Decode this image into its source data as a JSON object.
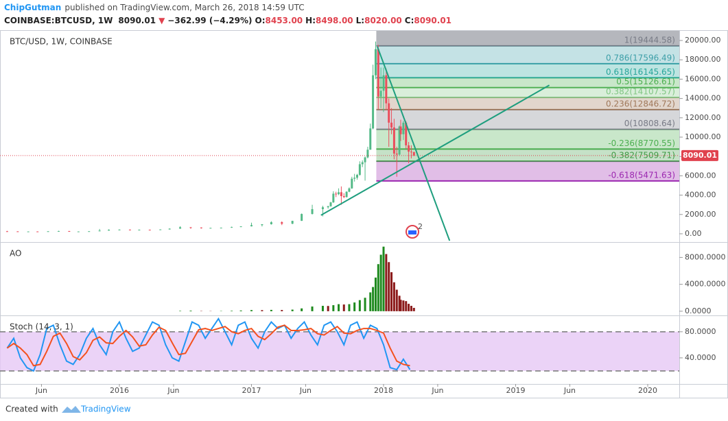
{
  "header": {
    "author": "ChipGutman",
    "published": "published on TradingView.com, March 26, 2018 14:59 UTC",
    "symbol": "COINBASE:BTCUSD, 1W",
    "price": "8090.01",
    "arrow": "▼",
    "change": "−362.99 (−4.29%)",
    "open_label": "O:",
    "open": "8453.00",
    "high_label": "H:",
    "high": "8498.00",
    "low_label": "L:",
    "low": "8020.00",
    "close_label": "C:",
    "close": "8090.01"
  },
  "events_badge": "2",
  "footer": {
    "created": "Created with",
    "brand": "TradingView"
  },
  "chart_data": [
    {
      "type": "candlestick",
      "title": "BTC/USD, 1W, COINBASE",
      "x": [
        2015.15,
        2015.23,
        2015.31,
        2015.38,
        2015.46,
        2015.54,
        2015.62,
        2015.69,
        2015.77,
        2015.85,
        2015.92,
        2016,
        2016.08,
        2016.15,
        2016.23,
        2016.31,
        2016.38,
        2016.46,
        2016.54,
        2016.62,
        2016.69,
        2016.77,
        2016.85,
        2016.92,
        2017,
        2017.08,
        2017.15,
        2017.23,
        2017.31,
        2017.38,
        2017.46,
        2017.54,
        2017.58,
        2017.6,
        2017.62,
        2017.64,
        2017.66,
        2017.68,
        2017.7,
        2017.72,
        2017.74,
        2017.76,
        2017.78,
        2017.8,
        2017.82,
        2017.84,
        2017.86,
        2017.88,
        2017.9,
        2017.92,
        2017.94,
        2017.96,
        2017.98,
        2018,
        2018.02,
        2018.04,
        2018.06,
        2018.08,
        2018.1,
        2018.12,
        2018.13,
        2018.15,
        2018.17,
        2018.19,
        2018.21,
        2018.23
      ],
      "open": [
        260,
        250,
        230,
        240,
        230,
        260,
        285,
        230,
        240,
        265,
        330,
        420,
        430,
        380,
        420,
        415,
        450,
        530,
        680,
        650,
        575,
        610,
        630,
        700,
        770,
        900,
        990,
        1200,
        1040,
        1340,
        2050,
        2550,
        2750,
        2850,
        3250,
        4150,
        4100,
        4300,
        3900,
        3800,
        4350,
        4700,
        5700,
        5800,
        6100,
        7200,
        7400,
        7900,
        8700,
        10900,
        16400,
        19100,
        14200,
        14800,
        16400,
        13500,
        11500,
        11000,
        8300,
        8200,
        11100,
        10300,
        11500,
        9150,
        8500,
        8453
      ],
      "high": [
        300,
        260,
        245,
        250,
        270,
        310,
        290,
        245,
        270,
        500,
        460,
        460,
        440,
        440,
        430,
        460,
        560,
        780,
        690,
        660,
        620,
        640,
        740,
        780,
        1150,
        1000,
        1300,
        1290,
        1350,
        2100,
        3000,
        2900,
        2900,
        3300,
        4400,
        4350,
        4700,
        4900,
        4200,
        4400,
        4800,
        5900,
        6200,
        6200,
        7500,
        7600,
        8000,
        9000,
        11400,
        17500,
        19890,
        19550,
        17200,
        17200,
        17100,
        14000,
        13000,
        11900,
        9000,
        11200,
        11800,
        11700,
        11650,
        9500,
        9150,
        8498
      ],
      "low": [
        240,
        220,
        215,
        220,
        225,
        255,
        200,
        220,
        235,
        260,
        320,
        380,
        360,
        370,
        400,
        410,
        440,
        520,
        520,
        540,
        570,
        600,
        620,
        690,
        760,
        760,
        950,
        900,
        1000,
        1330,
        2000,
        1800,
        2600,
        2800,
        3200,
        3800,
        4000,
        3000,
        3700,
        3750,
        4300,
        4650,
        5400,
        5600,
        6000,
        6900,
        5500,
        7800,
        8700,
        10800,
        16000,
        12900,
        13000,
        12600,
        12800,
        9000,
        10300,
        7700,
        5900,
        8100,
        9600,
        9700,
        8800,
        7300,
        7800,
        8020
      ],
      "close": [
        250,
        230,
        240,
        230,
        260,
        285,
        230,
        240,
        265,
        330,
        420,
        430,
        380,
        420,
        415,
        450,
        530,
        680,
        650,
        575,
        610,
        630,
        700,
        770,
        900,
        990,
        1200,
        1040,
        1340,
        2050,
        2550,
        2750,
        2850,
        3250,
        4150,
        4100,
        4300,
        3900,
        3800,
        4350,
        4700,
        5700,
        5800,
        6100,
        7200,
        7400,
        7900,
        8700,
        10900,
        16400,
        19100,
        14200,
        14800,
        16400,
        13500,
        11500,
        11000,
        8300,
        8200,
        11100,
        10300,
        11500,
        9150,
        8500,
        8453,
        8090.01
      ],
      "up_color": "#53b987",
      "down_color": "#eb4d5c",
      "xlim": [
        2015.096,
        2020.239
      ],
      "ylim": [
        -854,
        20996
      ],
      "yticks": [
        {
          "value": 0,
          "label": "0.00"
        },
        {
          "value": 2000,
          "label": "2000.00"
        },
        {
          "value": 4000,
          "label": "4000.00"
        },
        {
          "value": 6000,
          "label": "6000.00"
        },
        {
          "value": 8000,
          "label": "8000.00"
        },
        {
          "value": 10000,
          "label": "10000.00"
        },
        {
          "value": 12000,
          "label": "12000.00"
        },
        {
          "value": 14000,
          "label": "14000.00"
        },
        {
          "value": 16000,
          "label": "16000.00"
        },
        {
          "value": 18000,
          "label": "18000.00"
        },
        {
          "value": 20000,
          "label": "20000.00"
        }
      ],
      "fib": {
        "x_start": 2017.945,
        "levels": [
          {
            "price": 19444.58,
            "label": "1(19444.58)",
            "color": "#787b86"
          },
          {
            "price": 17596.49,
            "label": "0.786(17596.49)",
            "color": "#3d9fa8"
          },
          {
            "price": 16145.65,
            "label": "0.618(16145.65)",
            "color": "#26a69a"
          },
          {
            "price": 15126.61,
            "label": "0.5(15126.61)",
            "color": "#4caf50"
          },
          {
            "price": 14107.57,
            "label": "0.382(14107.57)",
            "color": "#81c784"
          },
          {
            "price": 12846.72,
            "label": "0.236(12846.72)",
            "color": "#a0785a"
          },
          {
            "price": 10808.64,
            "label": "0(10808.64)",
            "color": "#787b86"
          },
          {
            "price": 8770.55,
            "label": "-0.236(8770.55)",
            "color": "#4caf50"
          },
          {
            "price": 7509.71,
            "label": "-0.382(7509.71)",
            "color": "#3f9b45"
          },
          {
            "price": 5471.63,
            "label": "-0.618(5471.63)",
            "color": "#9c27b0"
          }
        ]
      },
      "trendlines": [
        {
          "x": [
            2017.526,
            2019.255
          ],
          "y": [
            1922,
            15374
          ],
          "color": "#1e9e7e"
        },
        {
          "x": [
            2017.953,
            2018.5
          ],
          "y": [
            19359,
            -712
          ],
          "color": "#1e9e7e"
        }
      ],
      "last_price": 8090.01,
      "last_price_color": "#e0424e"
    },
    {
      "type": "bar",
      "title": "AO",
      "x": [
        2016.46,
        2016.54,
        2016.62,
        2016.69,
        2016.77,
        2016.85,
        2016.92,
        2017,
        2017.08,
        2017.15,
        2017.23,
        2017.31,
        2017.38,
        2017.46,
        2017.54,
        2017.58,
        2017.62,
        2017.66,
        2017.7,
        2017.74,
        2017.78,
        2017.82,
        2017.86,
        2017.9,
        2017.92,
        2017.94,
        2017.96,
        2017.98,
        2018,
        2018.02,
        2018.04,
        2018.06,
        2018.08,
        2018.1,
        2018.12,
        2018.13,
        2018.15,
        2018.17,
        2018.19,
        2018.21,
        2018.23
      ],
      "values": [
        60,
        90,
        40,
        30,
        40,
        70,
        110,
        170,
        160,
        200,
        180,
        240,
        420,
        700,
        800,
        780,
        900,
        1050,
        1000,
        1050,
        1300,
        1650,
        2000,
        2800,
        3600,
        5000,
        7000,
        8400,
        9600,
        8500,
        7300,
        5800,
        4300,
        3200,
        2300,
        1700,
        1600,
        1500,
        1100,
        800,
        500
      ],
      "up_color": "#1e8a1e",
      "down_color": "#8b1a1a",
      "xlim": [
        2015.096,
        2020.239
      ],
      "ylim": [
        -623,
        10182
      ],
      "yticks": [
        {
          "value": 0,
          "label": "0.0000"
        },
        {
          "value": 4000,
          "label": "4000.0000"
        },
        {
          "value": 8000,
          "label": "8000.0000"
        }
      ]
    },
    {
      "type": "line",
      "title": "Stoch (14, 3, 1)",
      "x": [
        2015.15,
        2015.2,
        2015.25,
        2015.3,
        2015.35,
        2015.4,
        2015.45,
        2015.5,
        2015.55,
        2015.6,
        2015.65,
        2015.7,
        2015.75,
        2015.8,
        2015.85,
        2015.9,
        2015.95,
        2016,
        2016.05,
        2016.1,
        2016.15,
        2016.2,
        2016.25,
        2016.3,
        2016.35,
        2016.4,
        2016.45,
        2016.5,
        2016.55,
        2016.6,
        2016.65,
        2016.7,
        2016.75,
        2016.8,
        2016.85,
        2016.9,
        2016.95,
        2017,
        2017.05,
        2017.1,
        2017.15,
        2017.2,
        2017.25,
        2017.3,
        2017.35,
        2017.4,
        2017.45,
        2017.5,
        2017.55,
        2017.6,
        2017.65,
        2017.7,
        2017.75,
        2017.8,
        2017.85,
        2017.9,
        2017.95,
        2018,
        2018.05,
        2018.1,
        2018.15,
        2018.2
      ],
      "series": [
        {
          "color": "#2196f3",
          "values": [
            55,
            70,
            40,
            25,
            20,
            45,
            85,
            90,
            60,
            35,
            30,
            45,
            70,
            85,
            60,
            45,
            80,
            95,
            70,
            50,
            55,
            75,
            95,
            90,
            60,
            40,
            35,
            65,
            95,
            90,
            70,
            85,
            100,
            80,
            60,
            90,
            95,
            70,
            55,
            80,
            95,
            85,
            90,
            70,
            85,
            95,
            75,
            60,
            90,
            95,
            80,
            60,
            90,
            95,
            70,
            90,
            85,
            60,
            25,
            22,
            38,
            22
          ]
        },
        {
          "color": "#f4511e",
          "values": [
            55,
            62,
            55,
            45,
            28,
            30,
            50,
            73,
            78,
            62,
            42,
            37,
            48,
            67,
            72,
            63,
            62,
            73,
            82,
            72,
            58,
            60,
            75,
            87,
            82,
            63,
            45,
            47,
            65,
            83,
            85,
            82,
            85,
            88,
            80,
            77,
            82,
            85,
            73,
            68,
            77,
            87,
            90,
            82,
            82,
            83,
            85,
            77,
            75,
            82,
            88,
            78,
            77,
            82,
            85,
            85,
            82,
            78,
            55,
            35,
            30,
            28
          ]
        }
      ],
      "band": [
        20,
        80
      ],
      "band_color": "#e6c8f5",
      "xlim": [
        2015.096,
        2020.239
      ],
      "ylim": [
        0,
        104
      ],
      "yticks": [
        {
          "value": 40,
          "label": "40.0000"
        },
        {
          "value": 80,
          "label": "80.0000"
        }
      ],
      "xticks": [
        {
          "value": 2015.41,
          "label": "Jun"
        },
        2016,
        {
          "value": 2016.41,
          "label": "Jun"
        },
        2017,
        {
          "value": 2017.41,
          "label": "Jun"
        },
        2018,
        {
          "value": 2018.41,
          "label": "Jun"
        },
        2019,
        {
          "value": 2019.41,
          "label": "Jun"
        },
        2020
      ]
    }
  ]
}
